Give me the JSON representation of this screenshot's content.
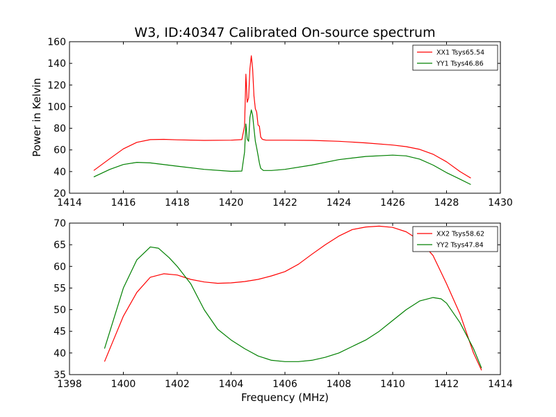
{
  "figure": {
    "title": "W3, ID:40347 Calibrated On-source spectrum",
    "xlabel": "Frequency (MHz)",
    "ylabel": "Power in Kelvin"
  },
  "chart_data": [
    {
      "type": "line",
      "title": "W3, ID:40347 Calibrated On-source spectrum",
      "xlabel": "",
      "ylabel": "Power in Kelvin",
      "xlim": [
        1414,
        1430
      ],
      "ylim": [
        20,
        160
      ],
      "xticks": [
        1414,
        1416,
        1418,
        1420,
        1422,
        1424,
        1426,
        1428,
        1430
      ],
      "yticks": [
        20,
        40,
        60,
        80,
        100,
        120,
        140,
        160
      ],
      "grid": false,
      "legend": "top-right",
      "series": [
        {
          "name": "XX1 Tsys65.54",
          "color": "#ff0000",
          "x": [
            1414.9,
            1415.5,
            1416.0,
            1416.5,
            1417.0,
            1417.5,
            1418.0,
            1419.0,
            1420.0,
            1420.4,
            1420.5,
            1420.55,
            1420.6,
            1420.65,
            1420.7,
            1420.75,
            1420.8,
            1420.85,
            1420.9,
            1420.95,
            1421.0,
            1421.05,
            1421.1,
            1421.15,
            1421.2,
            1421.3,
            1422.0,
            1423.0,
            1424.0,
            1425.0,
            1426.0,
            1426.5,
            1427.0,
            1427.5,
            1428.0,
            1428.5,
            1428.9
          ],
          "y": [
            41,
            52,
            61,
            67,
            69.5,
            69.8,
            69.3,
            68.8,
            69,
            69.5,
            82,
            130,
            104,
            108,
            135,
            147,
            135,
            110,
            98,
            95,
            83,
            82,
            72,
            70,
            69.5,
            69,
            69,
            68.8,
            68,
            66.5,
            64.5,
            63,
            60.5,
            56,
            49,
            40,
            34
          ]
        },
        {
          "name": "YY1 Tsys46.86",
          "color": "#008000",
          "x": [
            1414.9,
            1415.5,
            1416.0,
            1416.5,
            1417.0,
            1418.0,
            1419.0,
            1420.0,
            1420.4,
            1420.5,
            1420.55,
            1420.6,
            1420.65,
            1420.7,
            1420.75,
            1420.8,
            1420.85,
            1420.9,
            1420.95,
            1421.0,
            1421.05,
            1421.1,
            1421.2,
            1421.5,
            1422.0,
            1423.0,
            1424.0,
            1425.0,
            1426.0,
            1426.5,
            1427.0,
            1427.5,
            1428.0,
            1428.5,
            1428.9
          ],
          "y": [
            35,
            42,
            46.5,
            48.5,
            48,
            45,
            42,
            40.2,
            40.5,
            58,
            84,
            70,
            68,
            90,
            97,
            92,
            80,
            68,
            62,
            55,
            48,
            43,
            41,
            41,
            42,
            46,
            51,
            54,
            55.2,
            54.5,
            51.5,
            46,
            39,
            33,
            28
          ]
        }
      ]
    },
    {
      "type": "line",
      "title": "",
      "xlabel": "Frequency (MHz)",
      "ylabel": "",
      "xlim": [
        1398,
        1414
      ],
      "ylim": [
        35,
        70
      ],
      "xticks": [
        1398,
        1400,
        1402,
        1404,
        1406,
        1408,
        1410,
        1412,
        1414
      ],
      "yticks": [
        35,
        40,
        45,
        50,
        55,
        60,
        65,
        70
      ],
      "grid": false,
      "legend": "top-right",
      "series": [
        {
          "name": "XX2 Tsys58.62",
          "color": "#ff0000",
          "x": [
            1399.3,
            1399.6,
            1400.0,
            1400.5,
            1401.0,
            1401.5,
            1402.0,
            1402.5,
            1403.0,
            1403.5,
            1404.0,
            1404.5,
            1405.0,
            1405.5,
            1406.0,
            1406.5,
            1407.0,
            1407.5,
            1408.0,
            1408.5,
            1409.0,
            1409.5,
            1410.0,
            1410.5,
            1411.0,
            1411.5,
            1412.0,
            1412.5,
            1413.0,
            1413.3
          ],
          "y": [
            38,
            42.5,
            48.5,
            54,
            57.5,
            58.3,
            58,
            57,
            56.4,
            56.1,
            56.2,
            56.5,
            57,
            57.8,
            58.8,
            60.5,
            62.8,
            65,
            67,
            68.5,
            69.1,
            69.3,
            69,
            68,
            66,
            62.5,
            56,
            49,
            40,
            36
          ]
        },
        {
          "name": "YY2 Tsys47.84",
          "color": "#008000",
          "x": [
            1399.3,
            1399.6,
            1400.0,
            1400.5,
            1401.0,
            1401.3,
            1401.7,
            1402.0,
            1402.5,
            1403.0,
            1403.5,
            1404.0,
            1404.5,
            1405.0,
            1405.5,
            1406.0,
            1406.3,
            1406.5,
            1407.0,
            1407.5,
            1408.0,
            1408.5,
            1409.0,
            1409.5,
            1410.0,
            1410.5,
            1411.0,
            1411.5,
            1411.8,
            1412.0,
            1412.5,
            1413.0,
            1413.3
          ],
          "y": [
            41,
            47,
            55,
            61.5,
            64.5,
            64.2,
            62,
            60,
            56,
            50,
            45.5,
            43,
            41,
            39.3,
            38.3,
            38,
            38,
            38,
            38.3,
            39,
            40,
            41.5,
            43,
            45,
            47.5,
            50,
            52,
            52.8,
            52.5,
            51.5,
            47,
            41,
            36.5
          ]
        }
      ]
    }
  ]
}
